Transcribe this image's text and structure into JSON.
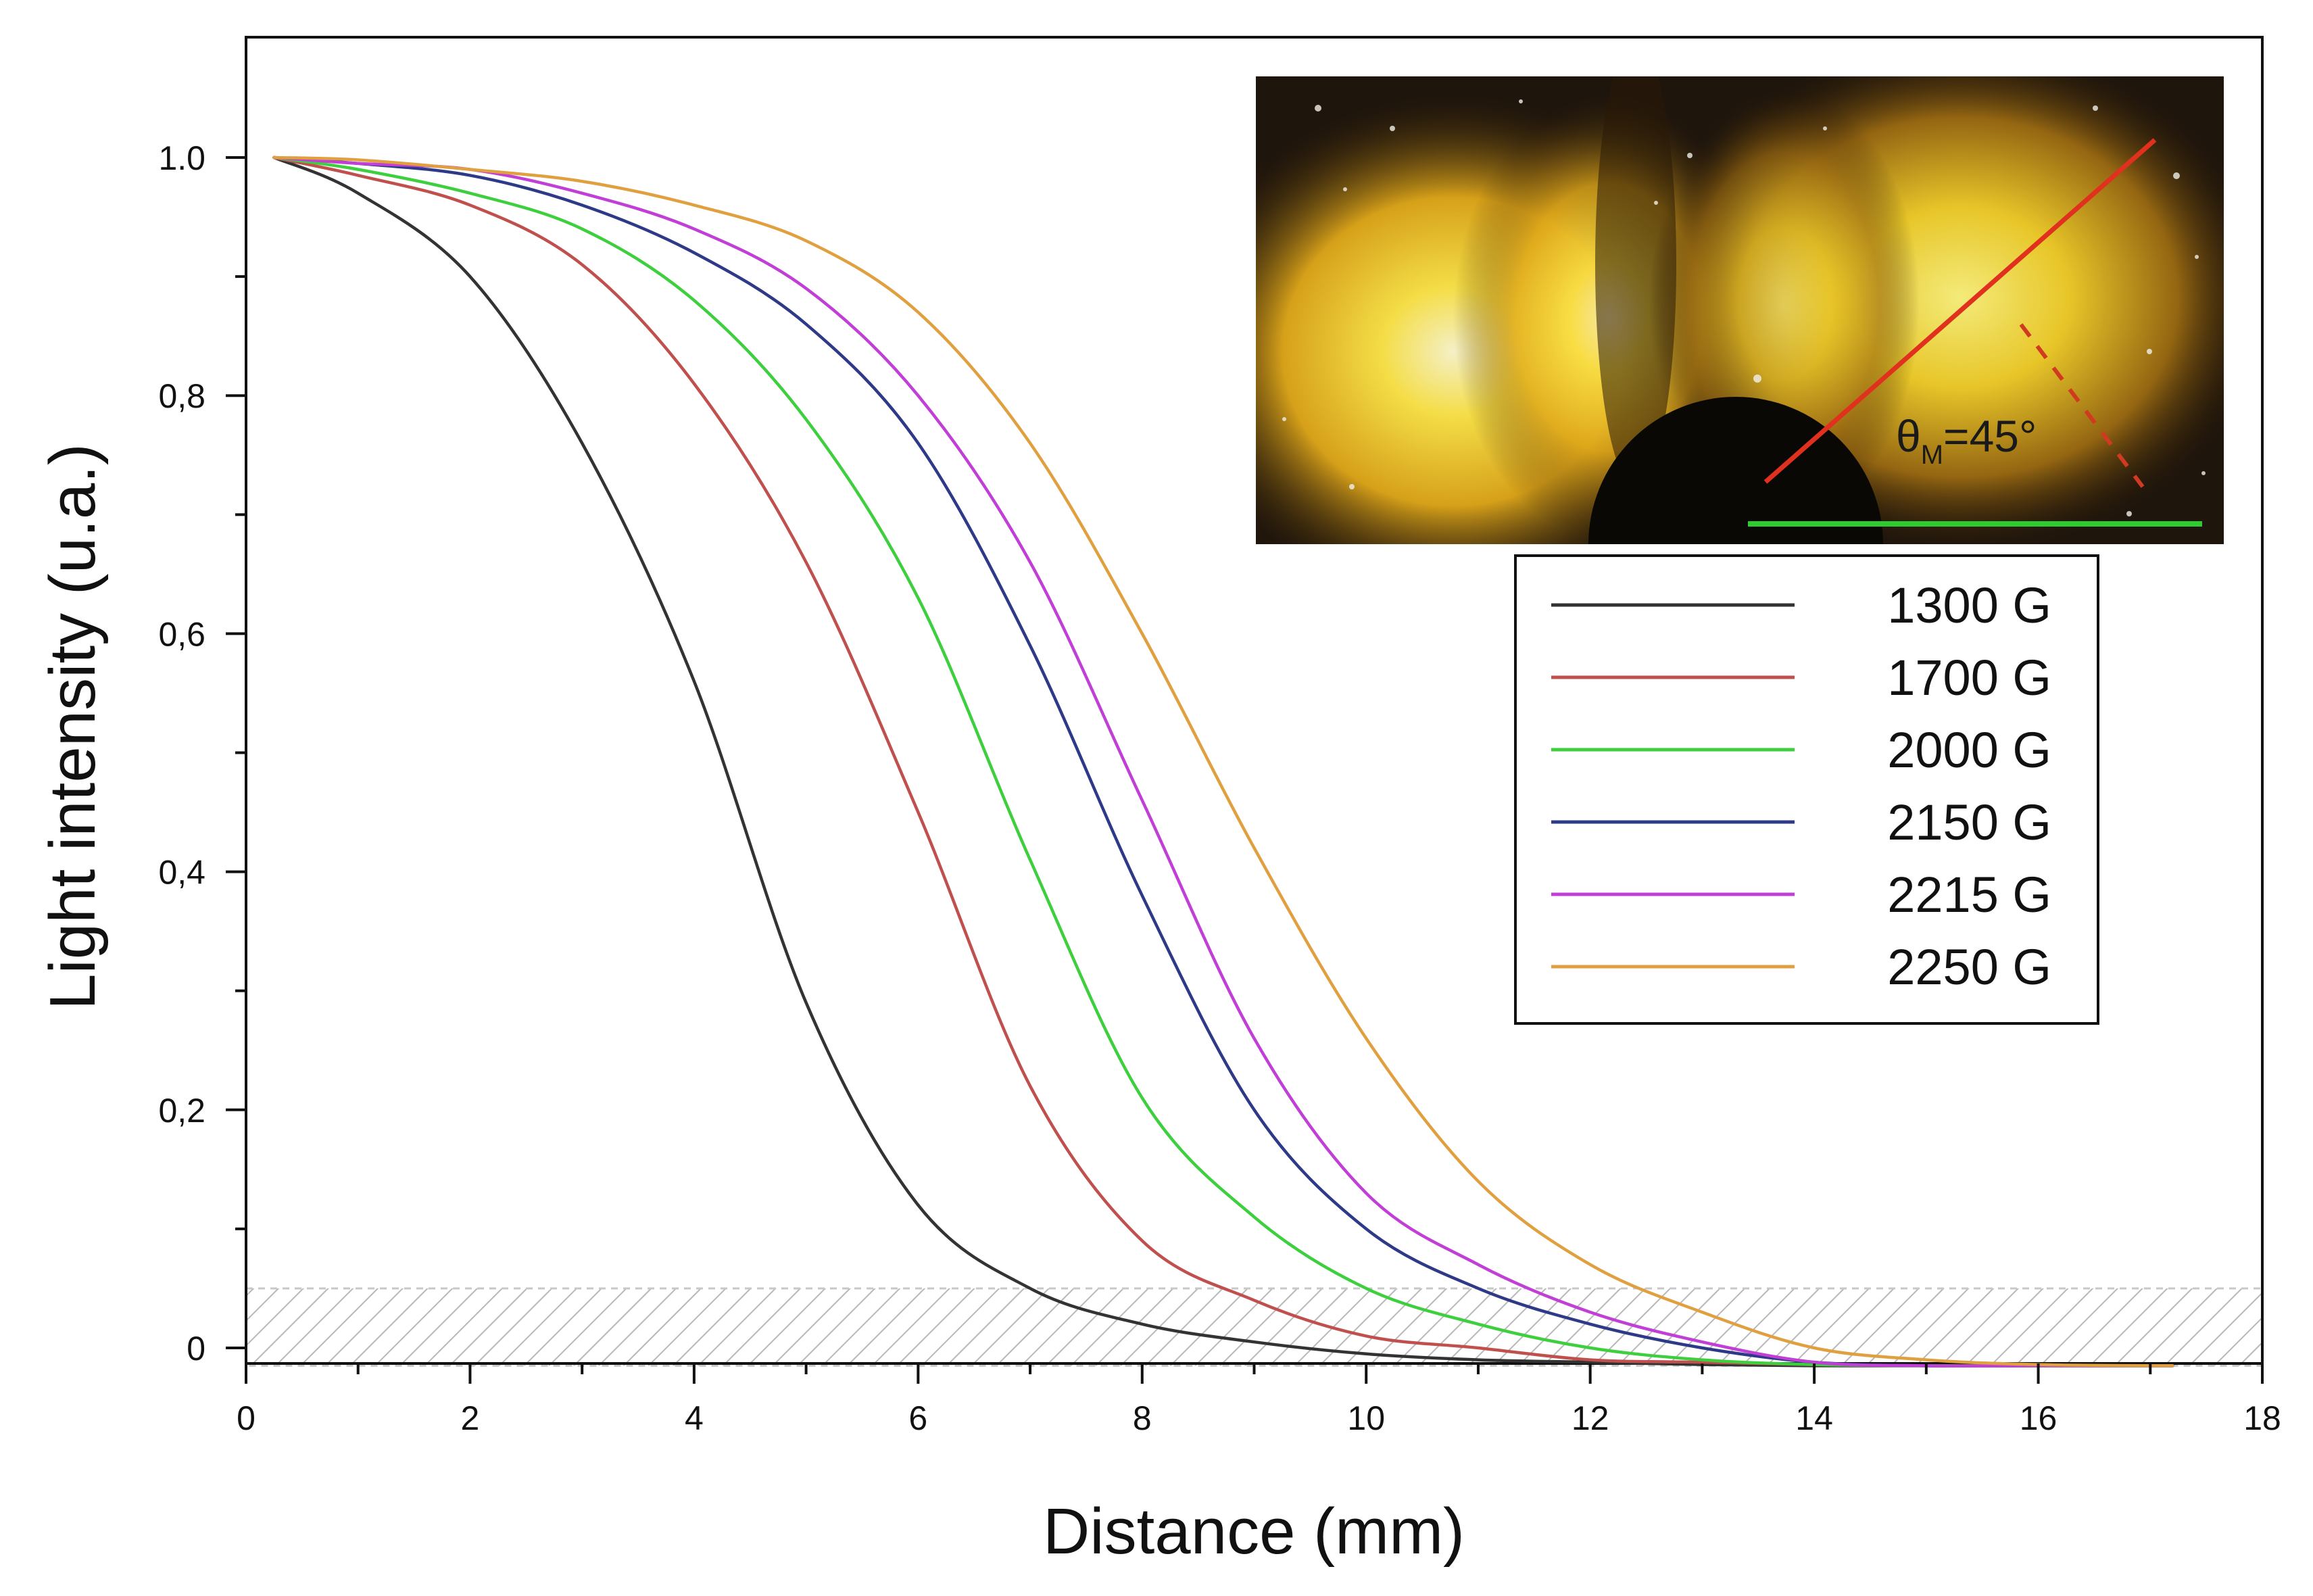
{
  "chart_data": {
    "type": "line",
    "title": "",
    "xlabel": "Distance (mm)",
    "ylabel": "Light intensity (u.a.)",
    "xlim": [
      0,
      18
    ],
    "ylim": [
      -0.015,
      1.1
    ],
    "xticks": [
      0,
      2,
      4,
      6,
      8,
      10,
      12,
      14,
      16,
      18
    ],
    "xtick_labels": [
      "0",
      "2",
      "4",
      "6",
      "8",
      "10",
      "12",
      "14",
      "16",
      "18"
    ],
    "yticks": [
      0,
      0.2,
      0.4,
      0.6,
      0.8,
      1.0
    ],
    "ytick_labels": [
      "0",
      "0,2",
      "0,4",
      "0,6",
      "0,8",
      "1.0"
    ],
    "grid": false,
    "legend_position": "right, below inset photo",
    "threshold_band": {
      "from": -0.015,
      "to": 0.05,
      "pattern": "diagonal hatch",
      "color": "#bdbdbd"
    },
    "x": [
      0.25,
      1,
      2,
      3,
      4,
      5,
      6,
      7,
      8,
      9,
      10,
      11,
      12,
      13,
      14,
      15,
      16,
      17.2
    ],
    "series": [
      {
        "name": "1300 G",
        "color": "#333333",
        "values": [
          1.0,
          0.97,
          0.9,
          0.76,
          0.56,
          0.29,
          0.12,
          0.05,
          0.02,
          0.005,
          -0.005,
          -0.01,
          -0.012,
          -0.014,
          -0.015,
          -0.015,
          -0.015,
          -0.015
        ]
      },
      {
        "name": "1700 G",
        "color": "#c0504d",
        "values": [
          1.0,
          0.985,
          0.96,
          0.91,
          0.81,
          0.66,
          0.45,
          0.22,
          0.09,
          0.04,
          0.01,
          0.0,
          -0.01,
          -0.012,
          -0.014,
          -0.015,
          -0.015,
          -0.015
        ]
      },
      {
        "name": "2000 G",
        "color": "#3ecf3e",
        "values": [
          1.0,
          0.99,
          0.97,
          0.94,
          0.88,
          0.78,
          0.63,
          0.41,
          0.21,
          0.11,
          0.05,
          0.02,
          0.0,
          -0.01,
          -0.014,
          -0.015,
          -0.015,
          -0.015
        ]
      },
      {
        "name": "2150 G",
        "color": "#2e3a87",
        "values": [
          1.0,
          0.995,
          0.985,
          0.96,
          0.92,
          0.86,
          0.76,
          0.59,
          0.38,
          0.2,
          0.1,
          0.05,
          0.02,
          0.0,
          -0.012,
          -0.015,
          -0.015,
          -0.015
        ]
      },
      {
        "name": "2215 G",
        "color": "#c13fd6",
        "values": [
          1.0,
          0.995,
          0.99,
          0.97,
          0.94,
          0.89,
          0.8,
          0.66,
          0.46,
          0.26,
          0.13,
          0.07,
          0.03,
          0.005,
          -0.012,
          -0.015,
          -0.015,
          -0.015
        ]
      },
      {
        "name": "2250 G",
        "color": "#e0a040",
        "values": [
          1.0,
          0.998,
          0.99,
          0.98,
          0.96,
          0.93,
          0.87,
          0.76,
          0.6,
          0.42,
          0.26,
          0.14,
          0.07,
          0.03,
          0.0,
          -0.01,
          -0.014,
          -0.015
        ]
      }
    ],
    "inset": {
      "description": "photo",
      "angle_label": "θ",
      "angle_subscript": "M",
      "angle_value": "=45°"
    }
  }
}
